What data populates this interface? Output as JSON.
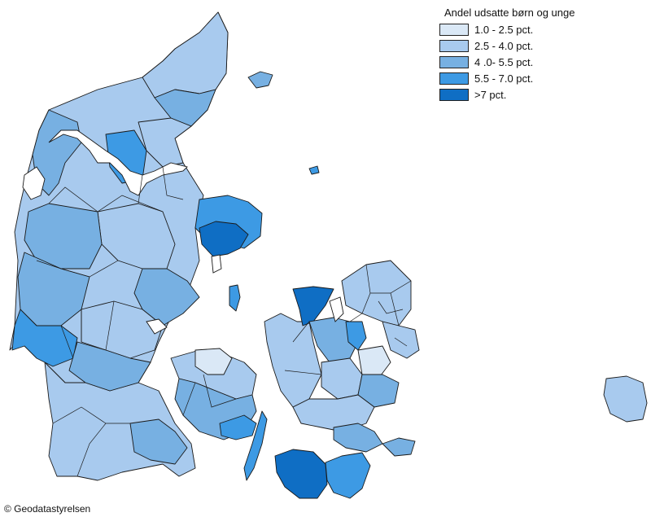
{
  "legend": {
    "title": "Andel udsatte børn og unge",
    "classes": [
      {
        "label": "1.0 - 2.5 pct.",
        "color": "#dae8f6"
      },
      {
        "label": "2.5 - 4.0 pct.",
        "color": "#a8caee"
      },
      {
        "label": "4 .0- 5.5 pct.",
        "color": "#77b0e2"
      },
      {
        "label": "5.5 - 7.0 pct.",
        "color": "#3d9ae4"
      },
      {
        "label": ">7 pct.",
        "color": "#0f6ec4"
      }
    ]
  },
  "credit": "© Geodatastyrelsen"
}
